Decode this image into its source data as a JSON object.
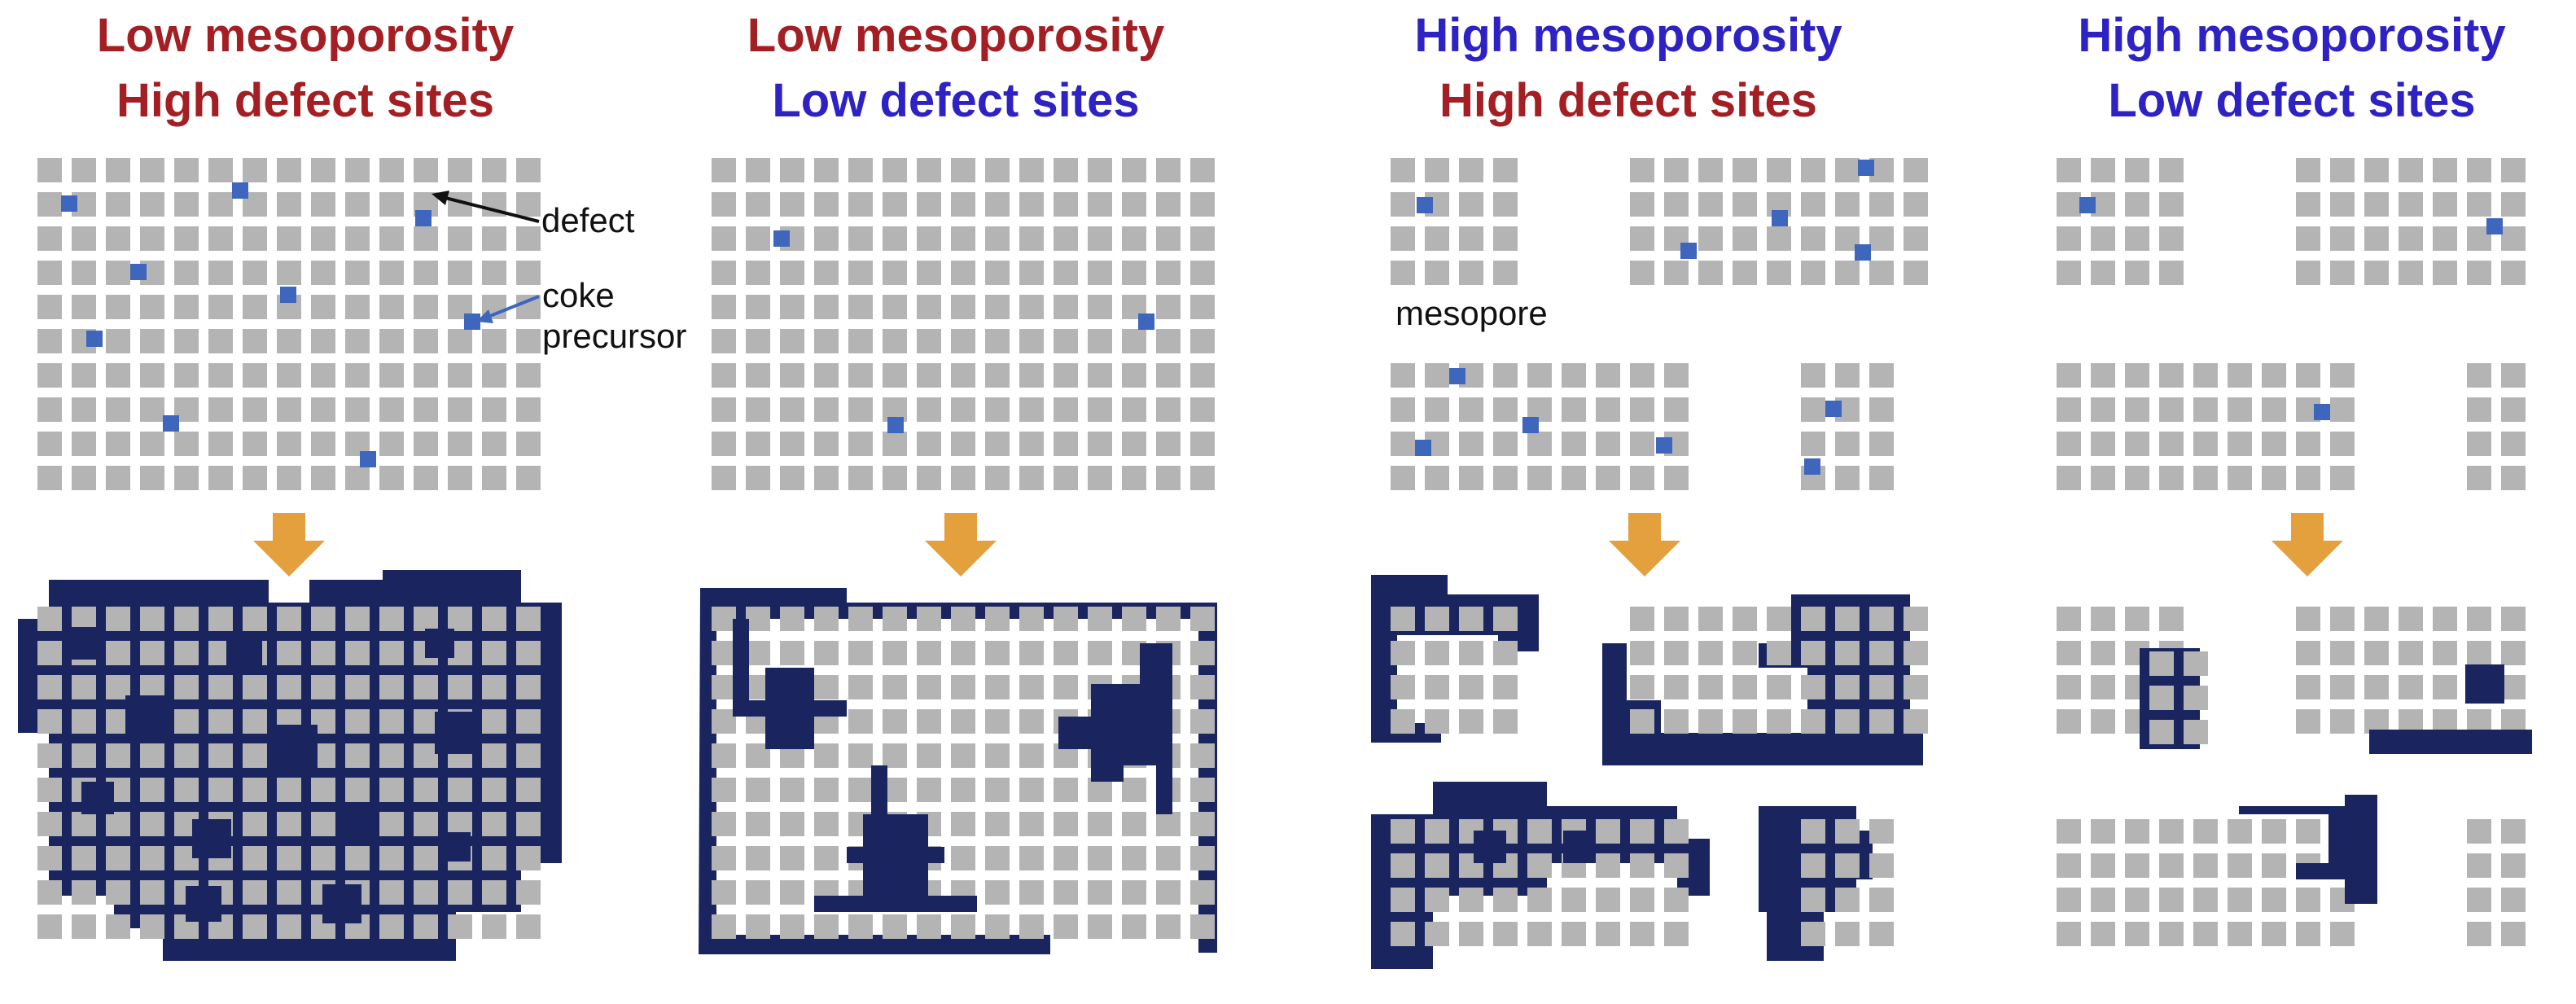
{
  "colors": {
    "red": "#a31f24",
    "blue": "#2e22c4",
    "cell": "#b4b4b4",
    "defect": "#3e66bc",
    "coke": "#1a2560",
    "arrow": "#e3a03c"
  },
  "panels": [
    {
      "id": "p1",
      "title_line1": "Low mesoporosity",
      "title_line1_color": "red",
      "title_line2": "High defect sites",
      "title_line2_color": "red"
    },
    {
      "id": "p2",
      "title_line1": "Low mesoporosity",
      "title_line1_color": "red",
      "title_line2": "Low defect sites",
      "title_line2_color": "blue"
    },
    {
      "id": "p3",
      "title_line1": "High mesoporosity",
      "title_line1_color": "blue",
      "title_line2": "High defect sites",
      "title_line2_color": "red"
    },
    {
      "id": "p4",
      "title_line1": "High mesoporosity",
      "title_line1_color": "blue",
      "title_line2": "Low defect sites",
      "title_line2_color": "blue"
    }
  ],
  "labels": {
    "defect": "defect",
    "coke_line1": "coke",
    "coke_line2": "precursor",
    "mesopore": "mesopore"
  }
}
